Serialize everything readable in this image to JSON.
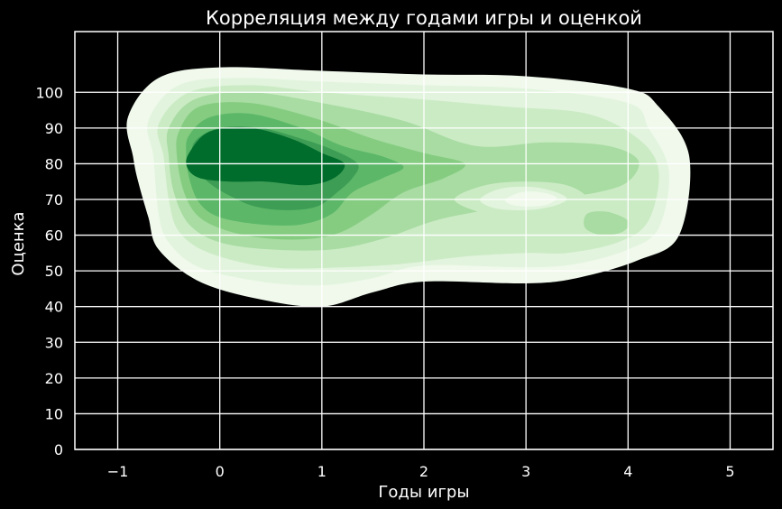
{
  "chart_data": {
    "type": "kde-contour",
    "title": "Корреляция между годами игры и оценкой",
    "xlabel": "Годы игры",
    "ylabel": "Оценка",
    "xlim": [
      -1.42,
      5.42
    ],
    "ylim": [
      0,
      117
    ],
    "xticks": [
      -1,
      0,
      1,
      2,
      3,
      4,
      5
    ],
    "xtick_labels": [
      "−1",
      "0",
      "1",
      "2",
      "3",
      "4",
      "5"
    ],
    "yticks": [
      0,
      10,
      20,
      30,
      40,
      50,
      60,
      70,
      80,
      90,
      100
    ],
    "ytick_labels": [
      "0",
      "10",
      "20",
      "30",
      "40",
      "50",
      "60",
      "70",
      "80",
      "90",
      "100"
    ],
    "grid": true,
    "background": "#000000",
    "colormap": "Greens",
    "levels": [
      {
        "color": "#f0f9ec",
        "outline": [
          [
            -0.9,
            93
          ],
          [
            -0.6,
            104
          ],
          [
            0,
            107
          ],
          [
            1,
            106
          ],
          [
            2,
            105
          ],
          [
            3,
            104.5
          ],
          [
            4,
            101
          ],
          [
            4.3,
            96
          ],
          [
            4.6,
            82
          ],
          [
            4.5,
            60
          ],
          [
            4.1,
            53
          ],
          [
            3.5,
            48
          ],
          [
            3,
            46.5
          ],
          [
            2,
            47
          ],
          [
            1.5,
            44
          ],
          [
            1,
            40
          ],
          [
            0.4,
            42
          ],
          [
            -0.2,
            47
          ],
          [
            -0.6,
            56
          ],
          [
            -0.7,
            65
          ],
          [
            -0.8,
            75
          ],
          [
            -0.85,
            82
          ]
        ]
      },
      {
        "color": "#e2f4dd",
        "outline": [
          [
            -0.7,
            92
          ],
          [
            -0.4,
            102
          ],
          [
            0.2,
            104
          ],
          [
            1,
            103
          ],
          [
            2,
            102
          ],
          [
            3,
            101
          ],
          [
            4,
            97
          ],
          [
            4.2,
            90
          ],
          [
            4.4,
            78
          ],
          [
            4.3,
            62
          ],
          [
            4,
            56
          ],
          [
            3.5,
            52
          ],
          [
            3,
            51
          ],
          [
            2,
            51.5
          ],
          [
            1.5,
            48
          ],
          [
            1,
            46
          ],
          [
            0.4,
            47
          ],
          [
            -0.2,
            51
          ],
          [
            -0.5,
            58
          ],
          [
            -0.6,
            66
          ],
          [
            -0.65,
            82
          ]
        ]
      },
      {
        "color": "#cbebc5",
        "outline": [
          [
            -0.6,
            91
          ],
          [
            -0.3,
            100
          ],
          [
            0.3,
            102
          ],
          [
            1,
            100
          ],
          [
            2,
            98
          ],
          [
            2.8,
            96
          ],
          [
            3.6,
            94
          ],
          [
            4.1,
            87
          ],
          [
            4.3,
            78
          ],
          [
            4.2,
            64
          ],
          [
            3.9,
            58
          ],
          [
            3.4,
            55
          ],
          [
            3,
            55
          ],
          [
            2.4,
            54
          ],
          [
            1.8,
            52
          ],
          [
            1.2,
            51
          ],
          [
            0.5,
            51
          ],
          [
            -0.1,
            55
          ],
          [
            -0.4,
            61
          ],
          [
            -0.5,
            70
          ],
          [
            -0.55,
            82
          ]
        ]
      },
      {
        "color": "#a8dca2",
        "outline": [
          [
            -0.5,
            90
          ],
          [
            -0.25,
            98
          ],
          [
            0.3,
            100
          ],
          [
            1,
            97
          ],
          [
            1.8,
            92
          ],
          [
            2.5,
            85
          ],
          [
            3.2,
            86
          ],
          [
            3.8,
            85
          ],
          [
            4.1,
            81
          ],
          [
            4,
            75
          ],
          [
            3.7,
            72
          ],
          [
            3.2,
            70
          ],
          [
            2.6,
            67
          ],
          [
            2.1,
            64
          ],
          [
            1.6,
            59
          ],
          [
            1.1,
            56
          ],
          [
            0.5,
            56
          ],
          [
            0,
            58
          ],
          [
            -0.3,
            63
          ],
          [
            -0.45,
            72
          ],
          [
            -0.5,
            82
          ]
        ]
      },
      {
        "color": "#a8dca2",
        "outline": [
          [
            3.6,
            66
          ],
          [
            3.8,
            66.5
          ],
          [
            4.0,
            64
          ],
          [
            3.95,
            61
          ],
          [
            3.75,
            60
          ],
          [
            3.58,
            62
          ]
        ]
      },
      {
        "color": "#85cc81",
        "outline": [
          [
            -0.4,
            89
          ],
          [
            -0.2,
            96
          ],
          [
            0.3,
            97
          ],
          [
            0.9,
            93
          ],
          [
            1.5,
            87
          ],
          [
            2,
            83
          ],
          [
            2.4,
            80
          ],
          [
            2.2,
            76
          ],
          [
            1.8,
            72
          ],
          [
            1.5,
            66
          ],
          [
            1.2,
            61
          ],
          [
            0.9,
            59
          ],
          [
            0.5,
            59
          ],
          [
            0.1,
            61
          ],
          [
            -0.2,
            65
          ],
          [
            -0.35,
            72
          ],
          [
            -0.42,
            82
          ]
        ]
      },
      {
        "color": "#5cb868",
        "outline": [
          [
            -0.3,
            88
          ],
          [
            -0.1,
            93
          ],
          [
            0.3,
            94
          ],
          [
            0.8,
            90
          ],
          [
            1.2,
            85
          ],
          [
            1.6,
            82
          ],
          [
            1.8,
            79
          ],
          [
            1.6,
            76
          ],
          [
            1.3,
            72
          ],
          [
            1.1,
            66
          ],
          [
            0.8,
            63
          ],
          [
            0.4,
            63
          ],
          [
            0.0,
            65
          ],
          [
            -0.2,
            69
          ],
          [
            -0.3,
            76
          ],
          [
            -0.33,
            83
          ]
        ]
      },
      {
        "color": "#3d9d55",
        "outline": [
          [
            -0.25,
            86
          ],
          [
            0,
            90
          ],
          [
            0.4,
            90
          ],
          [
            0.8,
            87
          ],
          [
            1.1,
            84
          ],
          [
            1.35,
            80
          ],
          [
            1.3,
            76
          ],
          [
            1.15,
            72
          ],
          [
            0.95,
            68
          ],
          [
            0.65,
            67
          ],
          [
            0.35,
            68
          ],
          [
            0.1,
            71
          ],
          [
            -0.12,
            75
          ],
          [
            -0.25,
            80
          ]
        ]
      },
      {
        "color": "#006d2c",
        "outline": [
          [
            -0.3,
            83
          ],
          [
            -0.1,
            89
          ],
          [
            0.3,
            90
          ],
          [
            0.7,
            87
          ],
          [
            1.0,
            83
          ],
          [
            1.22,
            80
          ],
          [
            1.12,
            76
          ],
          [
            0.85,
            74
          ],
          [
            0.45,
            75
          ],
          [
            0.1,
            75
          ],
          [
            -0.2,
            76
          ],
          [
            -0.32,
            79
          ]
        ]
      }
    ],
    "holes": [
      {
        "color": "#cbebc5",
        "outline": [
          [
            2.3,
            70
          ],
          [
            2.6,
            74
          ],
          [
            3.0,
            75
          ],
          [
            3.4,
            74
          ],
          [
            3.6,
            70
          ],
          [
            3.4,
            66
          ],
          [
            3.0,
            65
          ],
          [
            2.6,
            66
          ]
        ]
      },
      {
        "color": "#e2f4dd",
        "outline": [
          [
            2.55,
            70
          ],
          [
            2.75,
            73
          ],
          [
            3.05,
            73.5
          ],
          [
            3.3,
            72
          ],
          [
            3.4,
            70
          ],
          [
            3.25,
            68
          ],
          [
            3.0,
            67
          ],
          [
            2.7,
            67.5
          ]
        ]
      },
      {
        "color": "#f0f9ec",
        "outline": [
          [
            2.8,
            70
          ],
          [
            2.95,
            72
          ],
          [
            3.15,
            72
          ],
          [
            3.3,
            70.5
          ],
          [
            3.2,
            68.5
          ],
          [
            3.0,
            68
          ],
          [
            2.85,
            68.6
          ]
        ]
      }
    ]
  }
}
